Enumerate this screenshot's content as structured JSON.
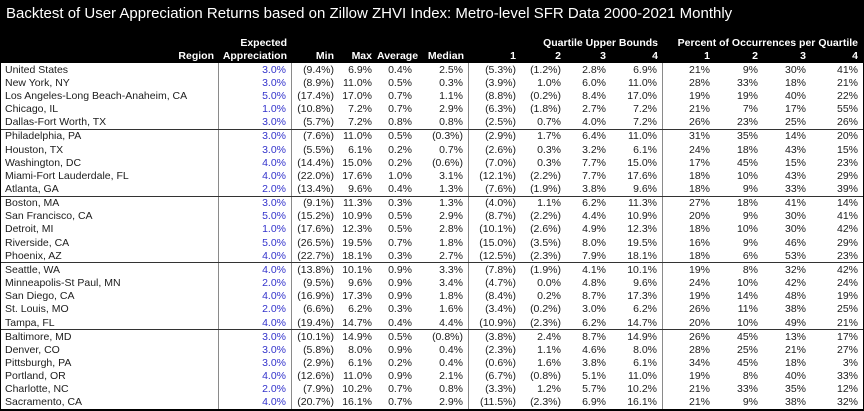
{
  "colors": {
    "header_bg": "#000000",
    "header_text": "#FFFFFF",
    "expected_value_blue": "#3333CC",
    "body_text": "#1C1C1C"
  },
  "chart_data": {
    "type": "table",
    "title": "Backtest of User Appreciation Returns based on Zillow ZHVI Index: Metro-level SFR Data 2000-2021 Monthly",
    "column_groups": {
      "quartile_upper_bounds": "Quartile Upper Bounds",
      "percent_occurrences": "Percent of Occurrences per Quartile"
    },
    "columns": {
      "region": "Region",
      "expected_line1": "Expected",
      "expected_line2": "Appreciation",
      "min": "Min",
      "max": "Max",
      "average": "Average",
      "median": "Median",
      "quartile_nums": [
        "1",
        "2",
        "3",
        "4"
      ],
      "percent_nums": [
        "1",
        "2",
        "3",
        "4"
      ]
    },
    "rows": [
      {
        "region": "United States",
        "expected": "3.0%",
        "min": "(9.4%)",
        "max": "6.9%",
        "average": "0.4%",
        "median": "2.5%",
        "qb": [
          "(5.3%)",
          "(1.2%)",
          "2.8%",
          "6.9%"
        ],
        "pct": [
          "21%",
          "9%",
          "30%",
          "41%"
        ],
        "group_end": false
      },
      {
        "region": "New York, NY",
        "expected": "3.0%",
        "min": "(8.9%)",
        "max": "11.0%",
        "average": "0.5%",
        "median": "0.3%",
        "qb": [
          "(3.9%)",
          "1.0%",
          "6.0%",
          "11.0%"
        ],
        "pct": [
          "28%",
          "33%",
          "18%",
          "21%"
        ],
        "group_end": false
      },
      {
        "region": "Los Angeles-Long Beach-Anaheim, CA",
        "expected": "5.0%",
        "min": "(17.4%)",
        "max": "17.0%",
        "average": "0.7%",
        "median": "1.1%",
        "qb": [
          "(8.8%)",
          "(0.2%)",
          "8.4%",
          "17.0%"
        ],
        "pct": [
          "19%",
          "19%",
          "40%",
          "22%"
        ],
        "group_end": false
      },
      {
        "region": "Chicago, IL",
        "expected": "1.0%",
        "min": "(10.8%)",
        "max": "7.2%",
        "average": "0.7%",
        "median": "2.9%",
        "qb": [
          "(6.3%)",
          "(1.8%)",
          "2.7%",
          "7.2%"
        ],
        "pct": [
          "21%",
          "7%",
          "17%",
          "55%"
        ],
        "group_end": false
      },
      {
        "region": "Dallas-Fort Worth, TX",
        "expected": "3.0%",
        "min": "(5.7%)",
        "max": "7.2%",
        "average": "0.8%",
        "median": "0.8%",
        "qb": [
          "(2.5%)",
          "0.7%",
          "4.0%",
          "7.2%"
        ],
        "pct": [
          "26%",
          "23%",
          "25%",
          "26%"
        ],
        "group_end": true
      },
      {
        "region": "Philadelphia, PA",
        "expected": "3.0%",
        "min": "(7.6%)",
        "max": "11.0%",
        "average": "0.5%",
        "median": "(0.3%)",
        "qb": [
          "(2.9%)",
          "1.7%",
          "6.4%",
          "11.0%"
        ],
        "pct": [
          "31%",
          "35%",
          "14%",
          "20%"
        ],
        "group_end": false
      },
      {
        "region": "Houston, TX",
        "expected": "3.0%",
        "min": "(5.5%)",
        "max": "6.1%",
        "average": "0.2%",
        "median": "0.7%",
        "qb": [
          "(2.6%)",
          "0.3%",
          "3.2%",
          "6.1%"
        ],
        "pct": [
          "24%",
          "18%",
          "43%",
          "15%"
        ],
        "group_end": false
      },
      {
        "region": "Washington, DC",
        "expected": "4.0%",
        "min": "(14.4%)",
        "max": "15.0%",
        "average": "0.2%",
        "median": "(0.6%)",
        "qb": [
          "(7.0%)",
          "0.3%",
          "7.7%",
          "15.0%"
        ],
        "pct": [
          "17%",
          "45%",
          "15%",
          "23%"
        ],
        "group_end": false
      },
      {
        "region": "Miami-Fort Lauderdale, FL",
        "expected": "4.0%",
        "min": "(22.0%)",
        "max": "17.6%",
        "average": "1.0%",
        "median": "3.1%",
        "qb": [
          "(12.1%)",
          "(2.2%)",
          "7.7%",
          "17.6%"
        ],
        "pct": [
          "18%",
          "10%",
          "43%",
          "29%"
        ],
        "group_end": false
      },
      {
        "region": "Atlanta, GA",
        "expected": "2.0%",
        "min": "(13.4%)",
        "max": "9.6%",
        "average": "0.4%",
        "median": "1.3%",
        "qb": [
          "(7.6%)",
          "(1.9%)",
          "3.8%",
          "9.6%"
        ],
        "pct": [
          "18%",
          "9%",
          "33%",
          "39%"
        ],
        "group_end": true
      },
      {
        "region": "Boston, MA",
        "expected": "3.0%",
        "min": "(9.1%)",
        "max": "11.3%",
        "average": "0.3%",
        "median": "1.3%",
        "qb": [
          "(4.0%)",
          "1.1%",
          "6.2%",
          "11.3%"
        ],
        "pct": [
          "27%",
          "18%",
          "41%",
          "14%"
        ],
        "group_end": false
      },
      {
        "region": "San Francisco, CA",
        "expected": "5.0%",
        "min": "(15.2%)",
        "max": "10.9%",
        "average": "0.5%",
        "median": "2.9%",
        "qb": [
          "(8.7%)",
          "(2.2%)",
          "4.4%",
          "10.9%"
        ],
        "pct": [
          "20%",
          "9%",
          "30%",
          "41%"
        ],
        "group_end": false
      },
      {
        "region": "Detroit, MI",
        "expected": "1.0%",
        "min": "(17.6%)",
        "max": "12.3%",
        "average": "0.5%",
        "median": "2.8%",
        "qb": [
          "(10.1%)",
          "(2.6%)",
          "4.9%",
          "12.3%"
        ],
        "pct": [
          "18%",
          "10%",
          "30%",
          "42%"
        ],
        "group_end": false
      },
      {
        "region": "Riverside, CA",
        "expected": "5.0%",
        "min": "(26.5%)",
        "max": "19.5%",
        "average": "0.7%",
        "median": "1.8%",
        "qb": [
          "(15.0%)",
          "(3.5%)",
          "8.0%",
          "19.5%"
        ],
        "pct": [
          "16%",
          "9%",
          "46%",
          "29%"
        ],
        "group_end": false
      },
      {
        "region": "Phoenix, AZ",
        "expected": "4.0%",
        "min": "(22.7%)",
        "max": "18.1%",
        "average": "0.3%",
        "median": "2.7%",
        "qb": [
          "(12.5%)",
          "(2.3%)",
          "7.9%",
          "18.1%"
        ],
        "pct": [
          "18%",
          "6%",
          "53%",
          "23%"
        ],
        "group_end": true
      },
      {
        "region": "Seattle, WA",
        "expected": "4.0%",
        "min": "(13.8%)",
        "max": "10.1%",
        "average": "0.9%",
        "median": "3.3%",
        "qb": [
          "(7.8%)",
          "(1.9%)",
          "4.1%",
          "10.1%"
        ],
        "pct": [
          "19%",
          "8%",
          "32%",
          "42%"
        ],
        "group_end": false
      },
      {
        "region": "Minneapolis-St Paul, MN",
        "expected": "2.0%",
        "min": "(9.5%)",
        "max": "9.6%",
        "average": "0.9%",
        "median": "3.4%",
        "qb": [
          "(4.7%)",
          "0.0%",
          "4.8%",
          "9.6%"
        ],
        "pct": [
          "24%",
          "10%",
          "42%",
          "24%"
        ],
        "group_end": false
      },
      {
        "region": "San Diego, CA",
        "expected": "4.0%",
        "min": "(16.9%)",
        "max": "17.3%",
        "average": "0.9%",
        "median": "1.8%",
        "qb": [
          "(8.4%)",
          "0.2%",
          "8.7%",
          "17.3%"
        ],
        "pct": [
          "19%",
          "14%",
          "48%",
          "19%"
        ],
        "group_end": false
      },
      {
        "region": "St. Louis, MO",
        "expected": "2.0%",
        "min": "(6.6%)",
        "max": "6.2%",
        "average": "0.3%",
        "median": "1.6%",
        "qb": [
          "(3.4%)",
          "(0.2%)",
          "3.0%",
          "6.2%"
        ],
        "pct": [
          "26%",
          "11%",
          "38%",
          "25%"
        ],
        "group_end": false
      },
      {
        "region": "Tampa, FL",
        "expected": "4.0%",
        "min": "(19.4%)",
        "max": "14.7%",
        "average": "0.4%",
        "median": "4.4%",
        "qb": [
          "(10.9%)",
          "(2.3%)",
          "6.2%",
          "14.7%"
        ],
        "pct": [
          "20%",
          "10%",
          "49%",
          "21%"
        ],
        "group_end": true
      },
      {
        "region": "Baltimore, MD",
        "expected": "3.0%",
        "min": "(10.1%)",
        "max": "14.9%",
        "average": "0.5%",
        "median": "(0.8%)",
        "qb": [
          "(3.8%)",
          "2.4%",
          "8.7%",
          "14.9%"
        ],
        "pct": [
          "26%",
          "45%",
          "13%",
          "17%"
        ],
        "group_end": false
      },
      {
        "region": "Denver, CO",
        "expected": "3.0%",
        "min": "(5.8%)",
        "max": "8.0%",
        "average": "0.9%",
        "median": "0.4%",
        "qb": [
          "(2.3%)",
          "1.1%",
          "4.6%",
          "8.0%"
        ],
        "pct": [
          "28%",
          "25%",
          "21%",
          "27%"
        ],
        "group_end": false
      },
      {
        "region": "Pittsburgh, PA",
        "expected": "3.0%",
        "min": "(2.9%)",
        "max": "6.1%",
        "average": "0.2%",
        "median": "0.4%",
        "qb": [
          "(0.6%)",
          "1.6%",
          "3.8%",
          "6.1%"
        ],
        "pct": [
          "34%",
          "45%",
          "18%",
          "3%"
        ],
        "group_end": false
      },
      {
        "region": "Portland, OR",
        "expected": "4.0%",
        "min": "(12.6%)",
        "max": "11.0%",
        "average": "0.9%",
        "median": "2.1%",
        "qb": [
          "(6.7%)",
          "(0.8%)",
          "5.1%",
          "11.0%"
        ],
        "pct": [
          "19%",
          "8%",
          "40%",
          "33%"
        ],
        "group_end": false
      },
      {
        "region": "Charlotte, NC",
        "expected": "2.0%",
        "min": "(7.9%)",
        "max": "10.2%",
        "average": "0.7%",
        "median": "0.8%",
        "qb": [
          "(3.3%)",
          "1.2%",
          "5.7%",
          "10.2%"
        ],
        "pct": [
          "21%",
          "33%",
          "35%",
          "12%"
        ],
        "group_end": false
      },
      {
        "region": "Sacramento, CA",
        "expected": "4.0%",
        "min": "(20.7%)",
        "max": "16.1%",
        "average": "0.7%",
        "median": "2.9%",
        "qb": [
          "(11.5%)",
          "(2.3%)",
          "6.9%",
          "16.1%"
        ],
        "pct": [
          "21%",
          "9%",
          "38%",
          "32%"
        ],
        "group_end": false
      }
    ]
  }
}
